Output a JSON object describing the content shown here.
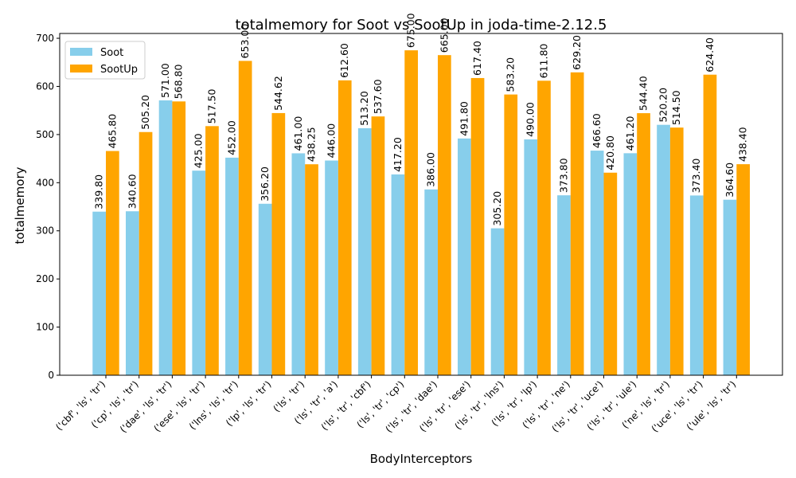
{
  "chart_data": {
    "type": "bar",
    "title": "totalmemory for Soot vs SootUp in joda-time-2.12.5",
    "xlabel": "BodyInterceptors",
    "ylabel": "totalmemory",
    "ylim": [
      0,
      710
    ],
    "yticks": [
      0,
      100,
      200,
      300,
      400,
      500,
      600,
      700
    ],
    "grid": false,
    "legend_position": "upper-left",
    "categories": [
      "('cbf', 'ls', 'tr')",
      "('cp', 'ls', 'tr')",
      "('dae', 'ls', 'tr')",
      "('ese', 'ls', 'tr')",
      "('lns', 'ls', 'tr')",
      "('lp', 'ls', 'tr')",
      "('ls', 'tr')",
      "('ls', 'tr', 'a')",
      "('ls', 'tr', 'cbf')",
      "('ls', 'tr', 'cp')",
      "('ls', 'tr', 'dae')",
      "('ls', 'tr', 'ese')",
      "('ls', 'tr', 'lns')",
      "('ls', 'tr', 'lp')",
      "('ls', 'tr', 'ne')",
      "('ls', 'tr', 'uce')",
      "('ls', 'tr', 'ule')",
      "('ne', 'ls', 'tr')",
      "('uce', 'ls', 'tr')",
      "('ule', 'ls', 'tr')"
    ],
    "series": [
      {
        "name": "Soot",
        "color": "#87CEEB",
        "values": [
          339.8,
          340.6,
          571.0,
          425.0,
          452.0,
          356.2,
          461.0,
          446.0,
          513.2,
          417.2,
          386.0,
          491.8,
          305.2,
          490.0,
          373.8,
          466.6,
          461.2,
          520.2,
          373.4,
          364.6
        ],
        "labels": [
          "339.80",
          "340.60",
          "571.00",
          "425.00",
          "452.00",
          "356.20",
          "461.00",
          "446.00",
          "513.20",
          "417.20",
          "386.00",
          "491.80",
          "305.20",
          "490.00",
          "373.80",
          "466.60",
          "461.20",
          "520.20",
          "373.40",
          "364.60"
        ]
      },
      {
        "name": "SootUp",
        "color": "#FFA500",
        "values": [
          465.8,
          505.2,
          568.8,
          517.5,
          653.0,
          544.62,
          438.25,
          612.6,
          537.6,
          675.0,
          665.0,
          617.4,
          583.2,
          611.8,
          629.2,
          420.8,
          544.4,
          514.5,
          624.4,
          438.4
        ],
        "labels": [
          "465.80",
          "505.20",
          "568.80",
          "517.50",
          "653.00",
          "544.62",
          "438.25",
          "612.60",
          "537.60",
          "675.00",
          "665.00",
          "617.40",
          "583.20",
          "611.80",
          "629.20",
          "420.80",
          "544.40",
          "514.50",
          "624.40",
          "438.40"
        ]
      }
    ]
  }
}
